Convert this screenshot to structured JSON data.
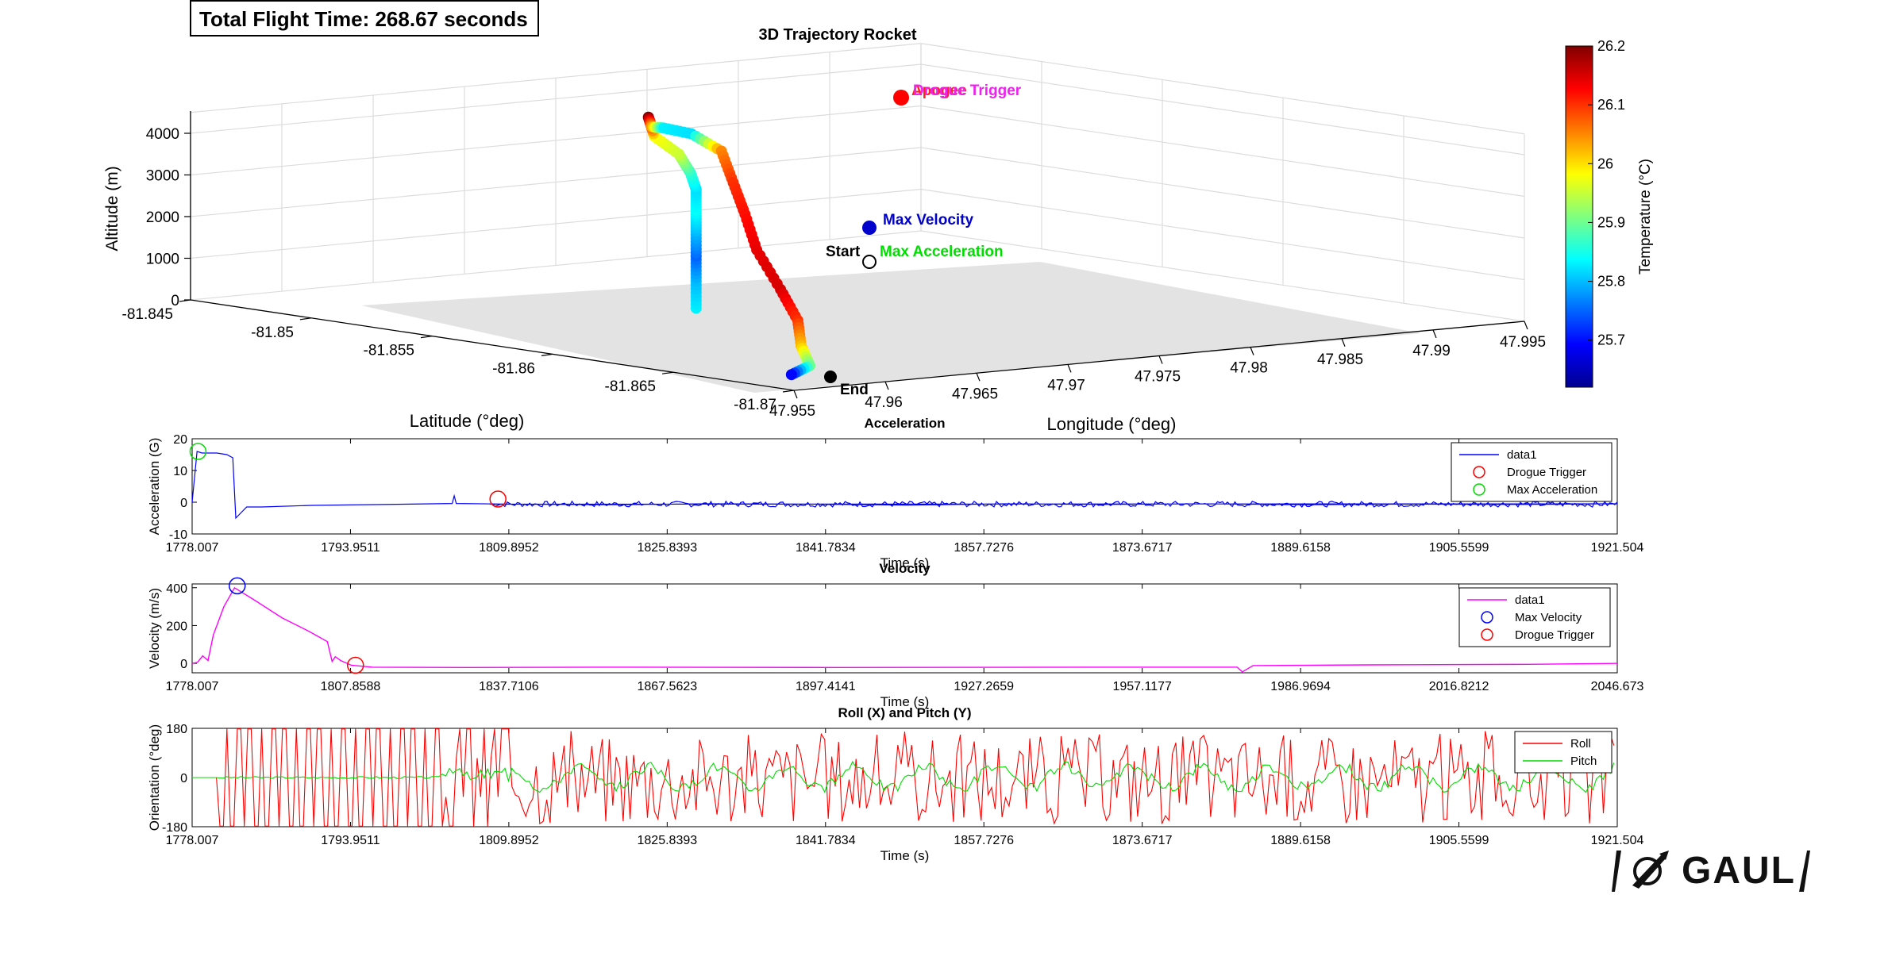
{
  "header": {
    "flight_time": "Total Flight Time: 268.67 seconds"
  },
  "logo": {
    "text": "GAUL"
  },
  "chart_data": [
    {
      "type": "scatter",
      "title": "3D Trajectory Rocket",
      "xlabel": "Latitude (°deg)",
      "ylabel": "Longitude (°deg)",
      "zlabel": "Altitude (m)",
      "lat_ticks": [
        "-81.845",
        "-81.85",
        "-81.855",
        "-81.86",
        "-81.865",
        "-81.87"
      ],
      "lon_ticks": [
        "47.955",
        "47.96",
        "47.965",
        "47.97",
        "47.975",
        "47.98",
        "47.985",
        "47.99",
        "47.995"
      ],
      "alt_ticks": [
        "0",
        "1000",
        "2000",
        "3000",
        "4000"
      ],
      "annotations": [
        "Start",
        "Max Acceleration",
        "Max Velocity",
        "Apogee",
        "Drogue Trigger",
        "End"
      ],
      "annotation_colors": {
        "Start": "#000000",
        "Max Acceleration": "#00dd00",
        "Max Velocity": "#0000cc",
        "Apogee": "#ff2222",
        "Drogue Trigger": "#ee22ee",
        "End": "#000000"
      },
      "colorbar": {
        "label": "Temperature (°C)",
        "ticks": [
          "26.2",
          "26.1",
          "26",
          "25.9",
          "25.8",
          "25.7"
        ],
        "min": 25.62,
        "max": 26.2,
        "colormap": "jet"
      },
      "grid": true,
      "trajectory": [
        {
          "lat": -81.8605,
          "lon": 47.9622,
          "alt": 850,
          "temp": 25.83
        },
        {
          "lat": -81.8605,
          "lon": 47.9622,
          "alt": 1500,
          "temp": 25.8
        },
        {
          "lat": -81.8605,
          "lon": 47.9622,
          "alt": 2100,
          "temp": 25.75
        },
        {
          "lat": -81.8605,
          "lon": 47.9622,
          "alt": 2700,
          "temp": 25.8
        },
        {
          "lat": -81.8605,
          "lon": 47.9622,
          "alt": 3200,
          "temp": 25.84
        },
        {
          "lat": -81.8605,
          "lon": 47.9622,
          "alt": 3700,
          "temp": 25.82
        },
        {
          "lat": -81.858,
          "lon": 47.9652,
          "alt": 3750,
          "temp": 25.86
        },
        {
          "lat": -81.856,
          "lon": 47.9672,
          "alt": 3950,
          "temp": 25.95
        },
        {
          "lat": -81.854,
          "lon": 47.9685,
          "alt": 4150,
          "temp": 25.98
        },
        {
          "lat": -81.853,
          "lon": 47.9695,
          "alt": 4480,
          "temp": 26.2
        },
        {
          "lat": -81.852,
          "lon": 47.971,
          "alt": 4100,
          "temp": 26.04
        },
        {
          "lat": -81.851,
          "lon": 47.973,
          "alt": 3900,
          "temp": 25.83
        },
        {
          "lat": -81.851,
          "lon": 47.9745,
          "alt": 3700,
          "temp": 25.82
        },
        {
          "lat": -81.853,
          "lon": 47.9735,
          "alt": 3500,
          "temp": 26.05
        },
        {
          "lat": -81.855,
          "lon": 47.9715,
          "alt": 3000,
          "temp": 26.1
        },
        {
          "lat": -81.857,
          "lon": 47.9695,
          "alt": 2500,
          "temp": 26.12
        },
        {
          "lat": -81.859,
          "lon": 47.9675,
          "alt": 1900,
          "temp": 26.14
        },
        {
          "lat": -81.8615,
          "lon": 47.9655,
          "alt": 1250,
          "temp": 26.15
        },
        {
          "lat": -81.8635,
          "lon": 47.9638,
          "alt": 750,
          "temp": 26.1
        },
        {
          "lat": -81.865,
          "lon": 47.962,
          "alt": 350,
          "temp": 26.02
        },
        {
          "lat": -81.8665,
          "lon": 47.9605,
          "alt": 60,
          "temp": 25.9
        },
        {
          "lat": -81.8675,
          "lon": 47.958,
          "alt": 0,
          "temp": 25.66
        }
      ]
    },
    {
      "type": "line",
      "title": "Acceleration",
      "xlabel": "Time (s)",
      "ylabel": "Acceleration (G)",
      "xlim": [
        1778.007,
        1921.504
      ],
      "ylim": [
        -10,
        20
      ],
      "x_ticks": [
        "1778.007",
        "1793.9511",
        "1809.8952",
        "1825.8393",
        "1841.7834",
        "1857.7276",
        "1873.6717",
        "1889.6158",
        "1905.5599",
        "1921.504"
      ],
      "y_ticks": [
        "20",
        "10",
        "0",
        "-10"
      ],
      "legend": [
        "data1",
        "Drogue Trigger",
        "Max Acceleration"
      ],
      "legend_position": "top-right",
      "colors": [
        "#0000ff",
        "#ff0000",
        "#00dd00"
      ],
      "series": [
        {
          "name": "data1",
          "x": [
            1778.007,
            1778.5,
            1779,
            1780.5,
            1781.5,
            1782.1,
            1782.4,
            1783.5,
            1785,
            1790,
            1800,
            1804.2,
            1804.4,
            1804.6,
            1810,
            1820,
            1830,
            1840,
            1850,
            1860,
            1870,
            1880,
            1890,
            1900,
            1910,
            1921.504
          ],
          "y": [
            0,
            16,
            15.5,
            15.5,
            15,
            14,
            -5,
            -1.5,
            -1.5,
            -1,
            -0.6,
            -0.4,
            2,
            -0.4,
            -0.6,
            -0.8,
            -0.5,
            -0.6,
            -0.9,
            -0.5,
            -0.7,
            -0.5,
            -0.8,
            -0.6,
            -0.7,
            -0.5
          ]
        },
        {
          "name": "Drogue Trigger",
          "x": [
            1808.8
          ],
          "y": [
            1
          ]
        },
        {
          "name": "Max Acceleration",
          "x": [
            1778.6
          ],
          "y": [
            16
          ]
        }
      ]
    },
    {
      "type": "line",
      "title": "Velocity",
      "xlabel": "Time (s)",
      "ylabel": "Velocity (m/s)",
      "xlim": [
        1778.007,
        2046.673
      ],
      "ylim": [
        -50,
        420
      ],
      "x_ticks": [
        "1778.007",
        "1807.8588",
        "1837.7106",
        "1867.5623",
        "1897.4141",
        "1927.2659",
        "1957.1177",
        "1986.9694",
        "2016.8212",
        "2046.673"
      ],
      "y_ticks": [
        "400",
        "200",
        "0"
      ],
      "legend": [
        "data1",
        "Max Velocity",
        "Drogue Trigger"
      ],
      "legend_position": "top-right",
      "colors": [
        "#ff00ff",
        "#0000ff",
        "#ff0000"
      ],
      "series": [
        {
          "name": "data1",
          "x": [
            1778.007,
            1779,
            1780,
            1781,
            1782,
            1784,
            1786,
            1790,
            1795,
            1800,
            1803.5,
            1804.4,
            1805,
            1806,
            1808,
            1812,
            1830,
            1860,
            1900,
            1950,
            1975,
            1976,
            1978,
            2000,
            2030,
            2046.673
          ],
          "y": [
            0,
            5,
            40,
            15,
            150,
            300,
            400,
            330,
            240,
            170,
            115,
            10,
            35,
            15,
            -10,
            -20,
            -22,
            -20,
            -22,
            -20,
            -20,
            -45,
            -12,
            -8,
            -5,
            0
          ]
        },
        {
          "name": "Max Velocity",
          "x": [
            1786.5
          ],
          "y": [
            410
          ]
        },
        {
          "name": "Drogue Trigger",
          "x": [
            1808.8
          ],
          "y": [
            -10
          ]
        }
      ]
    },
    {
      "type": "line",
      "title": "Roll (X) and Pitch (Y)",
      "xlabel": "Time (s)",
      "ylabel": "Orientation (°deg)",
      "xlim": [
        1778.007,
        1921.504
      ],
      "ylim": [
        -180,
        180
      ],
      "x_ticks": [
        "1778.007",
        "1793.9511",
        "1809.8952",
        "1825.8393",
        "1841.7834",
        "1857.7276",
        "1873.6717",
        "1889.6158",
        "1905.5599",
        "1921.504"
      ],
      "y_ticks": [
        "180",
        "0",
        "-180"
      ],
      "legend": [
        "Roll",
        "Pitch"
      ],
      "legend_position": "top-right",
      "colors": [
        "#ff0000",
        "#00dd00"
      ]
    }
  ]
}
